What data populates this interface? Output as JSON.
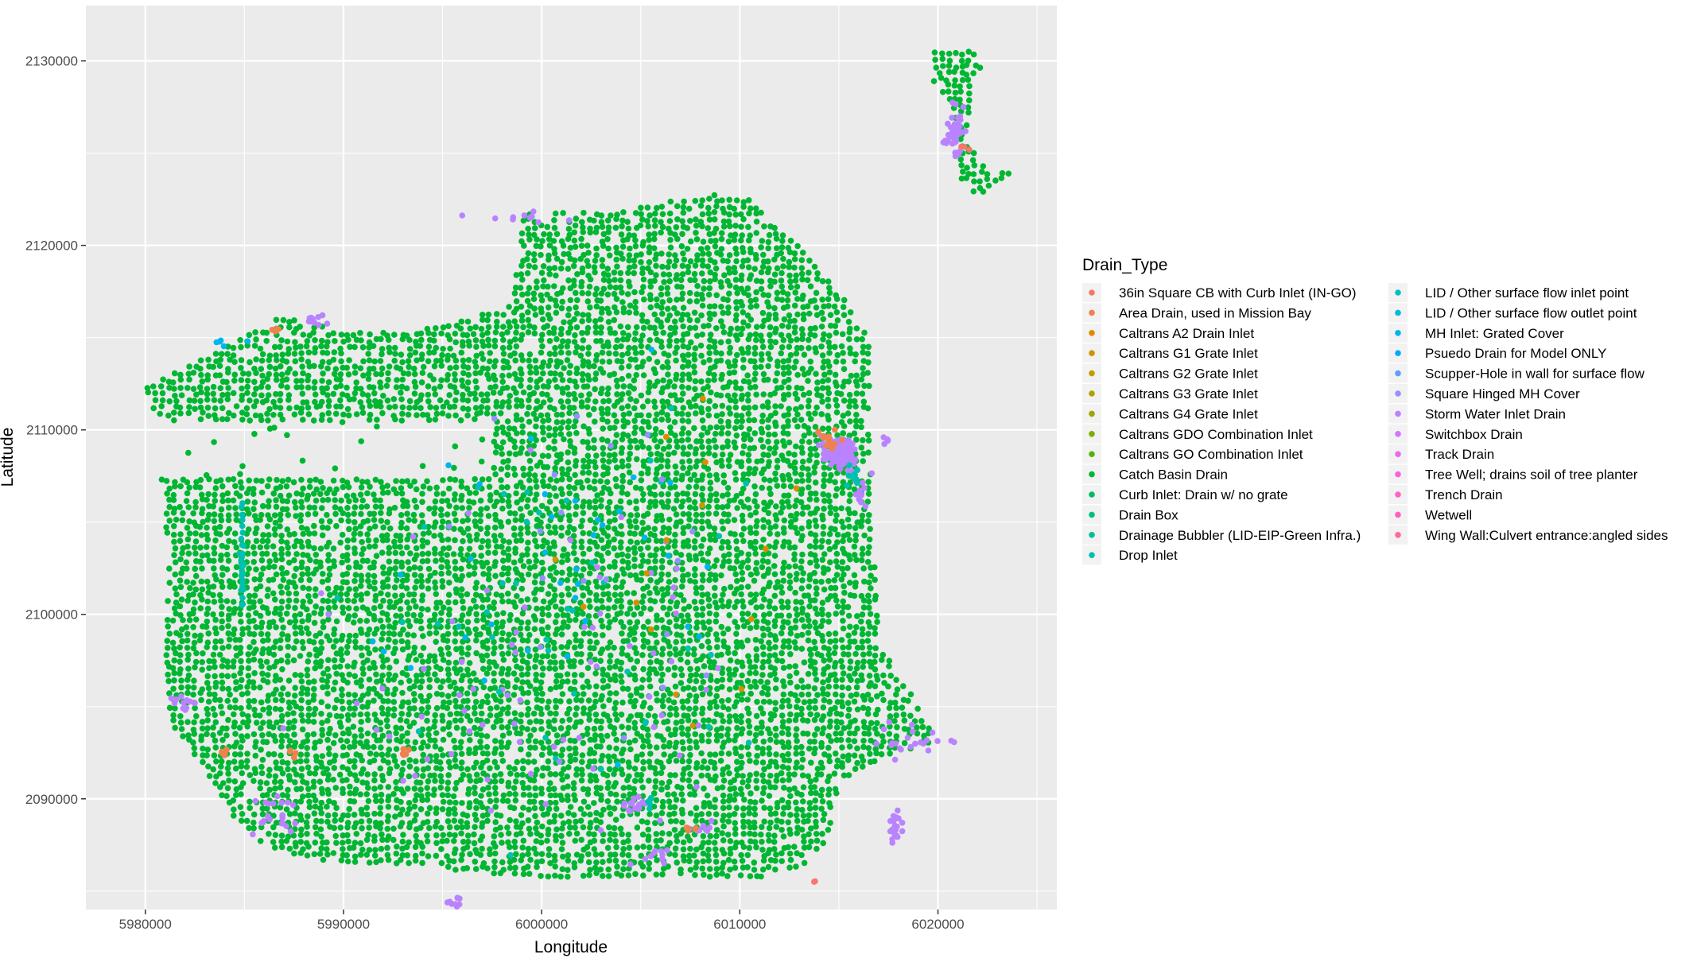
{
  "chart_data": {
    "type": "scatter",
    "xlabel": "Longitude",
    "ylabel": "Latitude",
    "xlim": [
      5977000,
      6026000
    ],
    "ylim": [
      2084000,
      2133000
    ],
    "x_ticks": [
      5980000,
      5990000,
      6000000,
      6010000,
      6020000
    ],
    "x_tick_labels": [
      "5980000",
      "5990000",
      "6000000",
      "6010000",
      "6020000"
    ],
    "y_ticks": [
      2090000,
      2100000,
      2110000,
      2120000,
      2130000
    ],
    "y_tick_labels": [
      "2090000",
      "2100000",
      "2110000",
      "2120000",
      "2130000"
    ],
    "grid": true,
    "legend_position": "right",
    "legend": {
      "title": "Drain_Type",
      "entries": [
        {
          "label": "36in Square CB with Curb Inlet (IN-GO)",
          "color": "#F8766D"
        },
        {
          "label": "Area Drain, used in Mission Bay",
          "color": "#F0814E"
        },
        {
          "label": "Caltrans A2 Drain Inlet",
          "color": "#E38900"
        },
        {
          "label": "Caltrans G1 Grate Inlet",
          "color": "#D39200"
        },
        {
          "label": "Caltrans G2 Grate Inlet",
          "color": "#C49A00"
        },
        {
          "label": "Caltrans G3 Grate Inlet",
          "color": "#AFA100"
        },
        {
          "label": "Caltrans G4 Grate Inlet",
          "color": "#99A800"
        },
        {
          "label": "Caltrans GDO Combination Inlet",
          "color": "#7CAE00"
        },
        {
          "label": "Caltrans GO Combination Inlet",
          "color": "#53B400"
        },
        {
          "label": "Catch Basin Drain",
          "color": "#00B632"
        },
        {
          "label": "Curb Inlet: Drain w/ no grate",
          "color": "#00BA5E"
        },
        {
          "label": "Drain Box",
          "color": "#00BE7D"
        },
        {
          "label": "Drainage Bubbler (LID-EIP-Green Infra.)",
          "color": "#00BF98"
        },
        {
          "label": "Drop Inlet",
          "color": "#00C0AF"
        },
        {
          "label": "LID / Other surface flow inlet point",
          "color": "#00BFC4"
        },
        {
          "label": "LID / Other surface flow outlet point",
          "color": "#00BBDA"
        },
        {
          "label": "MH Inlet: Grated Cover",
          "color": "#00B5EC"
        },
        {
          "label": "Psuedo Drain for Model ONLY",
          "color": "#00ABFD"
        },
        {
          "label": "Scupper-Hole in wall for surface flow",
          "color": "#619CFF"
        },
        {
          "label": "Square Hinged MH Cover",
          "color": "#9590FF"
        },
        {
          "label": "Storm Water Inlet Drain",
          "color": "#B983FF"
        },
        {
          "label": "Switchbox Drain",
          "color": "#D177FF"
        },
        {
          "label": "Track Drain",
          "color": "#E76BF3"
        },
        {
          "label": "Tree Well; drains soil of tree planter",
          "color": "#F564E3"
        },
        {
          "label": "Trench Drain",
          "color": "#FF61C9"
        },
        {
          "label": "Wetwell",
          "color": "#FF62BC"
        },
        {
          "label": "Wing Wall:Culvert entrance:angled sides",
          "color": "#FF6A98"
        }
      ]
    },
    "regions": [
      {
        "series": "Catch Basin Drain",
        "polygon": [
          [
            5979800,
            2112300
          ],
          [
            5981200,
            2113000
          ],
          [
            5987000,
            2116200
          ],
          [
            5990000,
            2115300
          ],
          [
            5995200,
            2115600
          ],
          [
            5998500,
            2116800
          ],
          [
            5999000,
            2121700
          ],
          [
            6001000,
            2121800
          ],
          [
            6004000,
            2121800
          ],
          [
            6008000,
            2122800
          ],
          [
            6010500,
            2122600
          ],
          [
            6012500,
            2120500
          ],
          [
            6015000,
            2117500
          ],
          [
            6016600,
            2114800
          ],
          [
            6016500,
            2111000
          ],
          [
            6016600,
            2107500
          ],
          [
            6016800,
            2103000
          ],
          [
            6017000,
            2098500
          ],
          [
            6018500,
            2096000
          ],
          [
            6020000,
            2093200
          ],
          [
            6016800,
            2092000
          ],
          [
            6015000,
            2091000
          ],
          [
            6014500,
            2088000
          ],
          [
            6013500,
            2086500
          ],
          [
            6010500,
            2085600
          ],
          [
            6006500,
            2085900
          ],
          [
            6002500,
            2085700
          ],
          [
            5999000,
            2085800
          ],
          [
            5995000,
            2086200
          ],
          [
            5992000,
            2086500
          ],
          [
            5988000,
            2086700
          ],
          [
            5986000,
            2087500
          ],
          [
            5984500,
            2089000
          ],
          [
            5983500,
            2090800
          ],
          [
            5981300,
            2094000
          ],
          [
            5981000,
            2097000
          ],
          [
            5981200,
            2103000
          ],
          [
            5980800,
            2107000
          ],
          [
            5980500,
            2108800
          ],
          [
            5980700,
            2110500
          ]
        ]
      },
      {
        "series": "Catch Basin Drain",
        "polygon": [
          [
            6019500,
            2130600
          ],
          [
            6021500,
            2130800
          ],
          [
            6022300,
            2129800
          ],
          [
            6021600,
            2127800
          ],
          [
            6021700,
            2125300
          ],
          [
            6022400,
            2124200
          ],
          [
            6023600,
            2123900
          ],
          [
            6022500,
            2122900
          ],
          [
            6021400,
            2122800
          ],
          [
            6020900,
            2124000
          ],
          [
            6021000,
            2126200
          ],
          [
            6020400,
            2127900
          ],
          [
            6019600,
            2129200
          ]
        ]
      }
    ],
    "excluded_regions": [
      {
        "polygon": [
          [
            5980600,
            2110500
          ],
          [
            5997500,
            2110500
          ],
          [
            5997500,
            2107400
          ],
          [
            5980600,
            2107400
          ]
        ]
      },
      {
        "polygon": [
          [
            6017000,
            2098500
          ],
          [
            6020500,
            2098500
          ],
          [
            6020500,
            2106000
          ],
          [
            6017000,
            2106000
          ]
        ]
      }
    ],
    "clusters": [
      {
        "series": "Storm Water Inlet Drain",
        "x": 6015000,
        "y": 2108700,
        "sx": 700,
        "sy": 700,
        "n": 110
      },
      {
        "series": "Storm Water Inlet Drain",
        "x": 6020800,
        "y": 2126200,
        "sx": 400,
        "sy": 1000,
        "n": 40
      },
      {
        "series": "Storm Water Inlet Drain",
        "x": 6017800,
        "y": 2088500,
        "sx": 300,
        "sy": 700,
        "n": 20
      },
      {
        "series": "Storm Water Inlet Drain",
        "x": 6004700,
        "y": 2089700,
        "sx": 400,
        "sy": 400,
        "n": 15
      },
      {
        "series": "Storm Water Inlet Drain",
        "x": 5986500,
        "y": 2089000,
        "sx": 900,
        "sy": 1300,
        "n": 20
      },
      {
        "series": "Storm Water Inlet Drain",
        "x": 5995800,
        "y": 2084400,
        "sx": 400,
        "sy": 400,
        "n": 8
      },
      {
        "series": "Storm Water Inlet Drain",
        "x": 5988700,
        "y": 2116000,
        "sx": 500,
        "sy": 300,
        "n": 10
      },
      {
        "series": "Storm Water Inlet Drain",
        "x": 6018800,
        "y": 2093200,
        "sx": 1800,
        "sy": 700,
        "n": 22
      },
      {
        "series": "Storm Water Inlet Drain",
        "x": 5982000,
        "y": 2095200,
        "sx": 700,
        "sy": 400,
        "n": 12
      },
      {
        "series": "Storm Water Inlet Drain",
        "x": 6016200,
        "y": 2106500,
        "sx": 400,
        "sy": 800,
        "n": 12
      },
      {
        "series": "Storm Water Inlet Drain",
        "x": 6017300,
        "y": 2109500,
        "sx": 200,
        "sy": 200,
        "n": 5
      },
      {
        "series": "Storm Water Inlet Drain",
        "x": 6005500,
        "y": 2087000,
        "sx": 800,
        "sy": 700,
        "n": 10
      },
      {
        "series": "Storm Water Inlet Drain",
        "x": 6008300,
        "y": 2088500,
        "sx": 600,
        "sy": 300,
        "n": 8
      },
      {
        "series": "Storm Water Inlet Drain",
        "x": 6000000,
        "y": 2097000,
        "sx": 8000,
        "sy": 8000,
        "n": 70
      },
      {
        "series": "Storm Water Inlet Drain",
        "x": 5999000,
        "y": 2121500,
        "sx": 2000,
        "sy": 300,
        "n": 10
      },
      {
        "series": "Area Drain, used in Mission Bay",
        "x": 6014500,
        "y": 2109500,
        "sx": 600,
        "sy": 400,
        "n": 14
      },
      {
        "series": "Area Drain, used in Mission Bay",
        "x": 5984000,
        "y": 2092500,
        "sx": 150,
        "sy": 250,
        "n": 7
      },
      {
        "series": "Area Drain, used in Mission Bay",
        "x": 5987500,
        "y": 2092500,
        "sx": 200,
        "sy": 300,
        "n": 5
      },
      {
        "series": "Area Drain, used in Mission Bay",
        "x": 5993200,
        "y": 2092500,
        "sx": 400,
        "sy": 150,
        "n": 5
      },
      {
        "series": "Area Drain, used in Mission Bay",
        "x": 6007500,
        "y": 2088400,
        "sx": 250,
        "sy": 150,
        "n": 5
      },
      {
        "series": "Area Drain, used in Mission Bay",
        "x": 5986700,
        "y": 2115400,
        "sx": 300,
        "sy": 100,
        "n": 4
      },
      {
        "series": "36in Square CB with Curb Inlet (IN-GO)",
        "x": 6013800,
        "y": 2085500,
        "sx": 100,
        "sy": 100,
        "n": 2
      },
      {
        "series": "36in Square CB with Curb Inlet (IN-GO)",
        "x": 6021300,
        "y": 2125500,
        "sx": 200,
        "sy": 300,
        "n": 3
      },
      {
        "series": "Drop Inlet",
        "x": 5984900,
        "y": 2103000,
        "sx": 80,
        "sy": 2500,
        "n": 32
      },
      {
        "series": "Drop Inlet",
        "x": 6005500,
        "y": 2089800,
        "sx": 200,
        "sy": 300,
        "n": 6
      },
      {
        "series": "Drop Inlet",
        "x": 6015800,
        "y": 2107500,
        "sx": 300,
        "sy": 500,
        "n": 10
      },
      {
        "series": "Drop Inlet",
        "x": 6000000,
        "y": 2100000,
        "sx": 9000,
        "sy": 9000,
        "n": 40
      },
      {
        "series": "MH Inlet: Grated Cover",
        "x": 6001000,
        "y": 2103000,
        "sx": 9000,
        "sy": 8000,
        "n": 35
      },
      {
        "series": "MH Inlet: Grated Cover",
        "x": 5984500,
        "y": 2114700,
        "sx": 700,
        "sy": 150,
        "n": 5
      },
      {
        "series": "Caltrans G1 Grate Inlet",
        "x": 6006000,
        "y": 2098000,
        "sx": 5000,
        "sy": 7000,
        "n": 10
      },
      {
        "series": "Caltrans A2 Drain Inlet",
        "x": 6010000,
        "y": 2105000,
        "sx": 4000,
        "sy": 8000,
        "n": 6
      },
      {
        "series": "Square Hinged MH Cover",
        "x": 6003000,
        "y": 2102000,
        "sx": 8000,
        "sy": 8000,
        "n": 20
      }
    ]
  }
}
